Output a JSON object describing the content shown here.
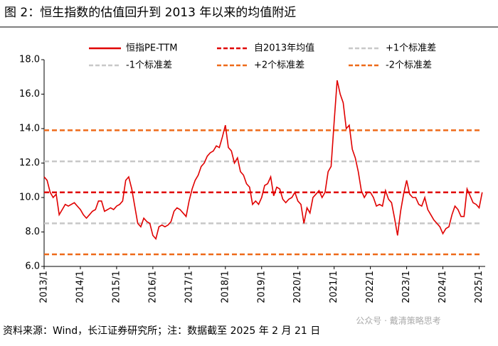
{
  "chart_data": {
    "type": "line",
    "title": "图 2：恒生指数的估值回升到 2013 年以来的均值附近",
    "source": "资料来源：Wind，长江证券研究所；注：数据截至 2025 年 2 月 21 日",
    "watermark": "公众号 · 戴清策略思考",
    "x": [
      "2013/1",
      "2013/2",
      "2013/3",
      "2013/4",
      "2013/5",
      "2013/6",
      "2013/7",
      "2013/8",
      "2013/9",
      "2013/10",
      "2013/11",
      "2013/12",
      "2014/1",
      "2014/2",
      "2014/3",
      "2014/4",
      "2014/5",
      "2014/6",
      "2014/7",
      "2014/8",
      "2014/9",
      "2014/10",
      "2014/11",
      "2014/12",
      "2015/1",
      "2015/2",
      "2015/3",
      "2015/4",
      "2015/5",
      "2015/6",
      "2015/7",
      "2015/8",
      "2015/9",
      "2015/10",
      "2015/11",
      "2015/12",
      "2016/1",
      "2016/2",
      "2016/3",
      "2016/4",
      "2016/5",
      "2016/6",
      "2016/7",
      "2016/8",
      "2016/9",
      "2016/10",
      "2016/11",
      "2016/12",
      "2017/1",
      "2017/2",
      "2017/3",
      "2017/4",
      "2017/5",
      "2017/6",
      "2017/7",
      "2017/8",
      "2017/9",
      "2017/10",
      "2017/11",
      "2017/12",
      "2018/1",
      "2018/2",
      "2018/3",
      "2018/4",
      "2018/5",
      "2018/6",
      "2018/7",
      "2018/8",
      "2018/9",
      "2018/10",
      "2018/11",
      "2018/12",
      "2019/1",
      "2019/2",
      "2019/3",
      "2019/4",
      "2019/5",
      "2019/6",
      "2019/7",
      "2019/8",
      "2019/9",
      "2019/10",
      "2019/11",
      "2019/12",
      "2020/1",
      "2020/2",
      "2020/3",
      "2020/4",
      "2020/5",
      "2020/6",
      "2020/7",
      "2020/8",
      "2020/9",
      "2020/10",
      "2020/11",
      "2020/12",
      "2021/1",
      "2021/2",
      "2021/3",
      "2021/4",
      "2021/5",
      "2021/6",
      "2021/7",
      "2021/8",
      "2021/9",
      "2021/10",
      "2021/11",
      "2021/12",
      "2022/1",
      "2022/2",
      "2022/3",
      "2022/4",
      "2022/5",
      "2022/6",
      "2022/7",
      "2022/8",
      "2022/9",
      "2022/10",
      "2022/11",
      "2022/12",
      "2023/1",
      "2023/2",
      "2023/3",
      "2023/4",
      "2023/5",
      "2023/6",
      "2023/7",
      "2023/8",
      "2023/9",
      "2023/10",
      "2023/11",
      "2023/12",
      "2024/1",
      "2024/2",
      "2024/3",
      "2024/4",
      "2024/5",
      "2024/6",
      "2024/7",
      "2024/8",
      "2024/9",
      "2024/10",
      "2024/11",
      "2024/12",
      "2025/1",
      "2025/2"
    ],
    "series": [
      {
        "name": "恒指PE-TTM",
        "color": "#e00000",
        "values": [
          11.2,
          11.0,
          10.3,
          10.0,
          10.2,
          9.0,
          9.3,
          9.6,
          9.5,
          9.6,
          9.7,
          9.5,
          9.3,
          9.0,
          8.8,
          9.0,
          9.2,
          9.3,
          9.8,
          9.8,
          9.2,
          9.3,
          9.4,
          9.3,
          9.5,
          9.6,
          9.8,
          11.0,
          11.2,
          10.5,
          9.5,
          8.5,
          8.3,
          8.8,
          8.6,
          8.5,
          7.8,
          7.6,
          8.3,
          8.4,
          8.3,
          8.4,
          8.6,
          9.2,
          9.4,
          9.3,
          9.1,
          8.9,
          9.8,
          10.5,
          11.0,
          11.3,
          11.8,
          12.0,
          12.4,
          12.6,
          12.7,
          13.0,
          12.9,
          13.5,
          14.2,
          12.9,
          12.7,
          12.0,
          12.3,
          11.5,
          11.3,
          10.8,
          10.6,
          9.6,
          9.8,
          9.6,
          10.0,
          10.7,
          10.8,
          11.2,
          10.1,
          10.6,
          10.5,
          9.9,
          9.7,
          9.9,
          10.0,
          10.3,
          9.8,
          9.6,
          8.5,
          9.4,
          9.1,
          10.0,
          10.2,
          10.4,
          10.0,
          10.3,
          11.5,
          11.8,
          14.4,
          16.8,
          16.0,
          15.5,
          14.0,
          14.2,
          12.8,
          12.3,
          11.5,
          10.4,
          10.0,
          10.3,
          10.3,
          10.0,
          9.5,
          9.6,
          9.5,
          10.4,
          9.9,
          9.7,
          8.8,
          7.8,
          9.2,
          10.2,
          11.0,
          10.2,
          10.0,
          10.0,
          9.6,
          9.5,
          10.0,
          9.3,
          9.0,
          8.7,
          8.5,
          8.3,
          7.9,
          8.2,
          8.3,
          9.0,
          9.5,
          9.3,
          8.9,
          8.9,
          10.5,
          10.1,
          9.7,
          9.6,
          9.4,
          10.3
        ]
      }
    ],
    "reference_lines": [
      {
        "name": "自2013年均值",
        "color": "#e00000",
        "value": 10.3
      },
      {
        "name": "+1个标准差",
        "color": "#c8c8c8",
        "value": 12.1
      },
      {
        "name": "-1个标准差",
        "color": "#c8c8c8",
        "value": 8.5
      },
      {
        "name": "+2个标准差",
        "color": "#ee6a1a",
        "value": 13.9
      },
      {
        "name": "-2个标准差",
        "color": "#ee6a1a",
        "value": 6.7
      }
    ],
    "xlim": [
      "2013/1",
      "2025/3"
    ],
    "xticks": [
      "2013/1",
      "2014/1",
      "2015/1",
      "2016/1",
      "2017/1",
      "2018/1",
      "2019/1",
      "2020/1",
      "2021/1",
      "2022/1",
      "2023/1",
      "2024/1",
      "2025/1"
    ],
    "ylim": [
      6,
      18
    ],
    "yticks": [
      {
        "value": 6,
        "label": "6.0"
      },
      {
        "value": 8,
        "label": "8.0"
      },
      {
        "value": 10,
        "label": "10.0"
      },
      {
        "value": 12,
        "label": "12.0"
      },
      {
        "value": 14,
        "label": "14.0"
      },
      {
        "value": 16,
        "label": "16.0"
      },
      {
        "value": 18,
        "label": "18.0"
      }
    ]
  }
}
